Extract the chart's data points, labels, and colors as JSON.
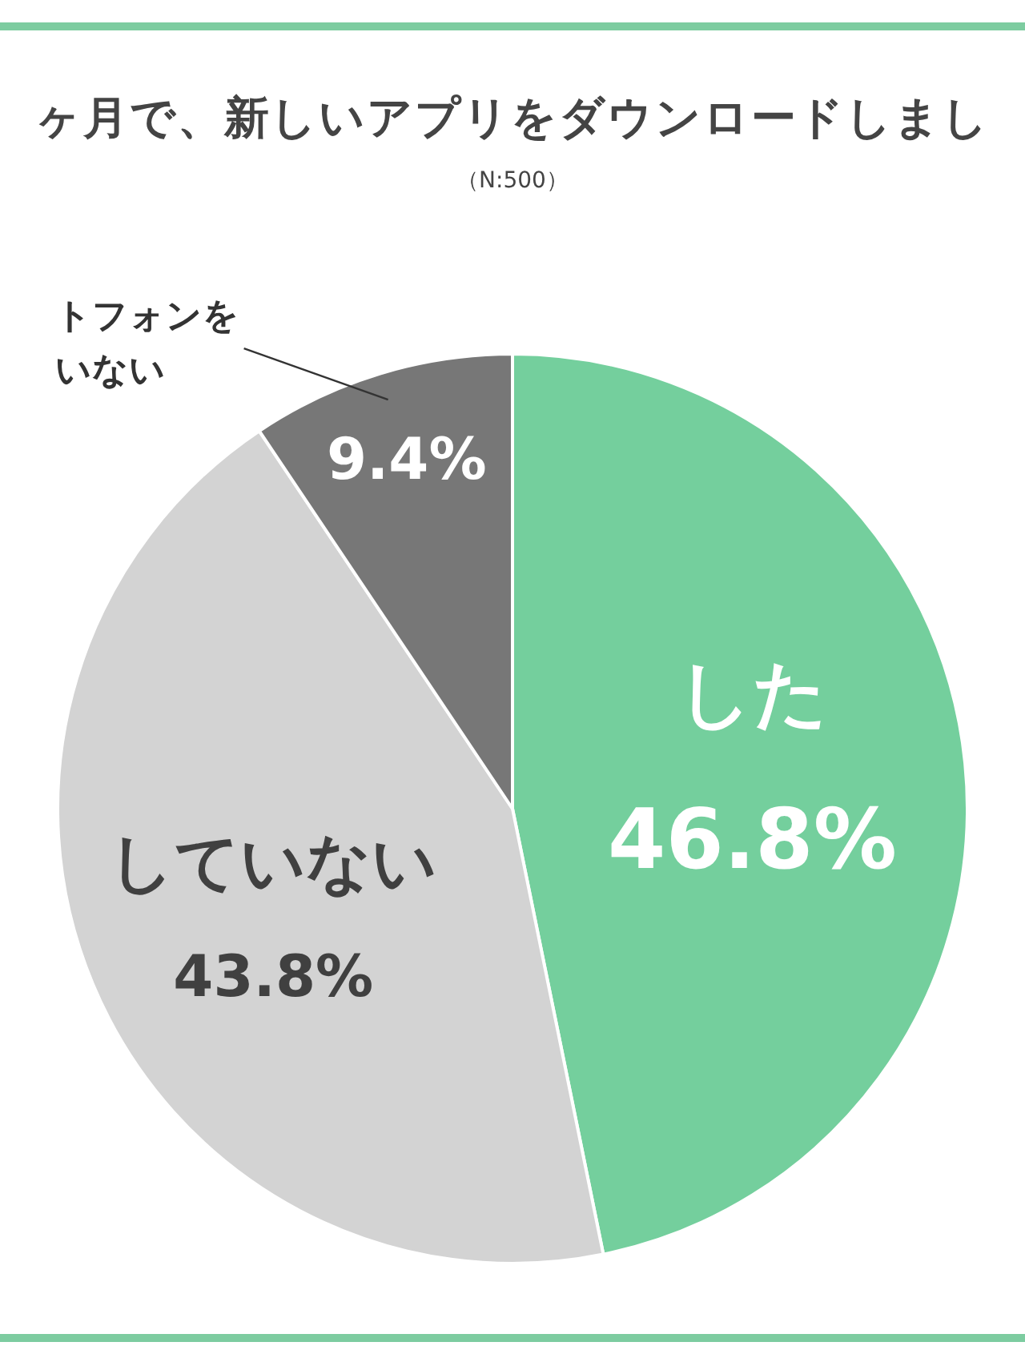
{
  "chart_data": {
    "type": "pie",
    "title": "ヶ月で、新しいアプリをダウンロードしまし",
    "subtitle": "（N:500）",
    "categories": [
      "した",
      "していない",
      "トフォンをいない"
    ],
    "values": [
      46.8,
      43.8,
      9.4
    ],
    "colors": [
      "#74cf9d",
      "#d3d3d3",
      "#777777"
    ],
    "value_labels": [
      "46.8%",
      "43.8%",
      "9.4%"
    ]
  }
}
